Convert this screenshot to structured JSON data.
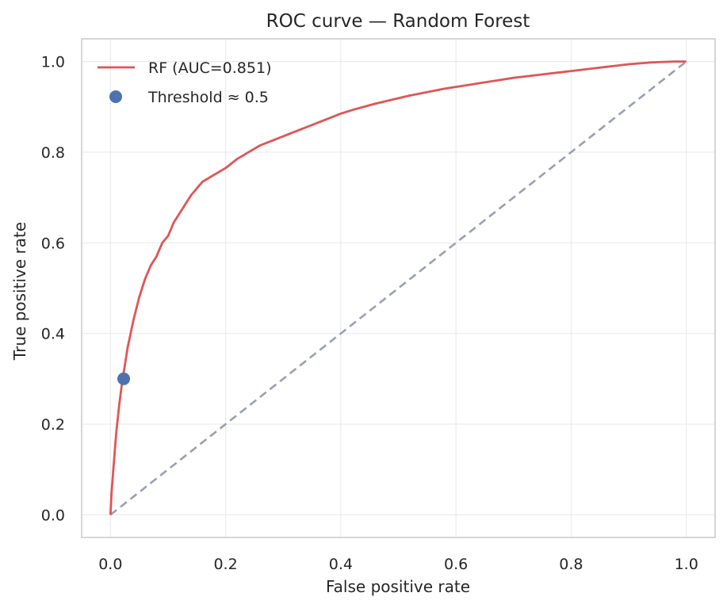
{
  "chart_data": {
    "type": "line",
    "title": "ROC curve — Random Forest",
    "xlabel": "False positive rate",
    "ylabel": "True positive rate",
    "xlim": [
      -0.05,
      1.05
    ],
    "ylim": [
      -0.05,
      1.05
    ],
    "xticks": [
      "0.0",
      "0.2",
      "0.4",
      "0.6",
      "0.8",
      "1.0"
    ],
    "yticks": [
      "0.0",
      "0.2",
      "0.4",
      "0.6",
      "0.8",
      "1.0"
    ],
    "grid": true,
    "legend_position": "top-left",
    "series": [
      {
        "name": "RF (AUC=0.851)",
        "kind": "line",
        "color": "#e05557",
        "x": [
          0,
          0.002,
          0.005,
          0.01,
          0.015,
          0.02,
          0.025,
          0.03,
          0.035,
          0.04,
          0.05,
          0.06,
          0.07,
          0.08,
          0.09,
          0.1,
          0.11,
          0.12,
          0.13,
          0.14,
          0.15,
          0.16,
          0.18,
          0.2,
          0.22,
          0.24,
          0.26,
          0.28,
          0.3,
          0.32,
          0.34,
          0.36,
          0.38,
          0.4,
          0.42,
          0.44,
          0.46,
          0.48,
          0.5,
          0.52,
          0.54,
          0.56,
          0.58,
          0.6,
          0.62,
          0.64,
          0.66,
          0.68,
          0.7,
          0.72,
          0.74,
          0.76,
          0.78,
          0.8,
          0.82,
          0.84,
          0.86,
          0.88,
          0.9,
          0.92,
          0.94,
          0.96,
          0.98,
          1.0
        ],
        "y": [
          0,
          0.05,
          0.1,
          0.18,
          0.24,
          0.29,
          0.33,
          0.37,
          0.4,
          0.43,
          0.48,
          0.52,
          0.55,
          0.57,
          0.6,
          0.615,
          0.645,
          0.665,
          0.685,
          0.705,
          0.72,
          0.735,
          0.75,
          0.765,
          0.785,
          0.8,
          0.815,
          0.825,
          0.835,
          0.845,
          0.855,
          0.865,
          0.875,
          0.885,
          0.893,
          0.9,
          0.907,
          0.913,
          0.919,
          0.925,
          0.93,
          0.935,
          0.94,
          0.944,
          0.948,
          0.952,
          0.956,
          0.96,
          0.964,
          0.967,
          0.97,
          0.973,
          0.976,
          0.979,
          0.982,
          0.985,
          0.988,
          0.991,
          0.994,
          0.996,
          0.998,
          0.999,
          1.0,
          1.0
        ]
      },
      {
        "name": "",
        "kind": "line",
        "dashed": true,
        "color": "#9aa0b0",
        "x": [
          0,
          1
        ],
        "y": [
          0,
          1
        ]
      },
      {
        "name": "Threshold ≈ 0.5",
        "kind": "scatter",
        "color": "#4c72b0",
        "x": [
          0.023
        ],
        "y": [
          0.3
        ]
      }
    ]
  }
}
